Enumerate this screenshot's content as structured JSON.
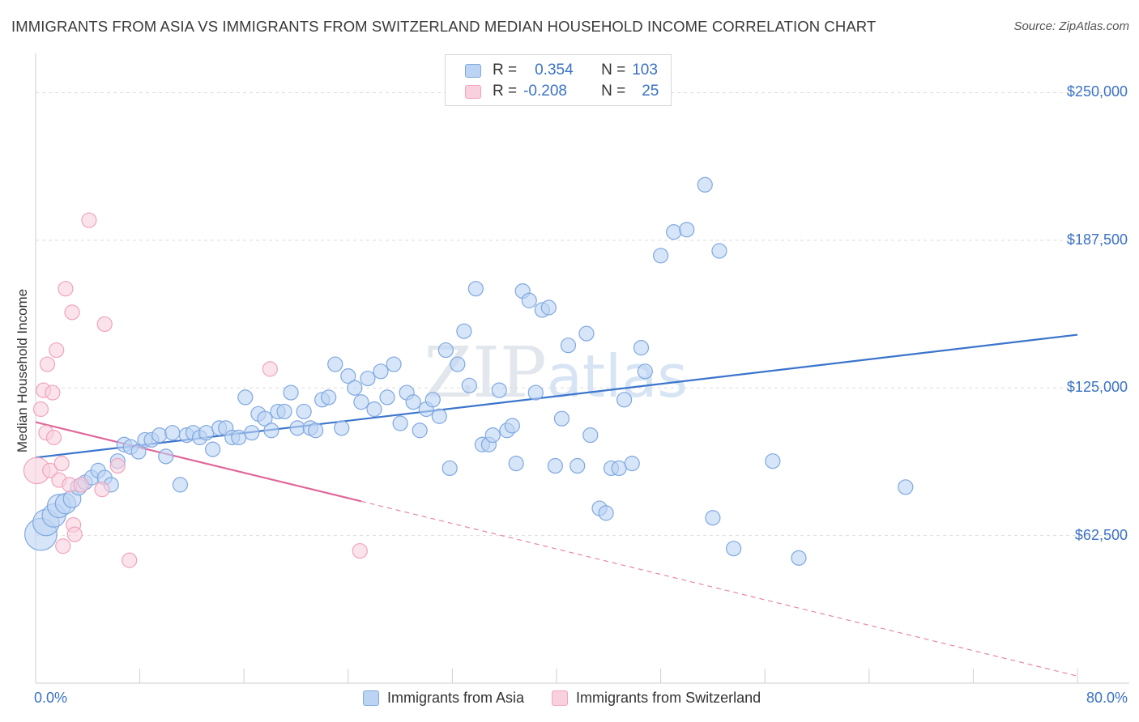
{
  "chart_data": {
    "type": "scatter",
    "title": "IMMIGRANTS FROM ASIA VS IMMIGRANTS FROM SWITZERLAND MEDIAN HOUSEHOLD INCOME CORRELATION CHART",
    "source": "Source: ZipAtlas.com",
    "watermark": "ZIPatlas",
    "xlabel": "",
    "ylabel": "Median Household Income",
    "xlim": [
      0,
      80
    ],
    "ylim": [
      0,
      262500
    ],
    "x_tick_labels": [
      "0.0%",
      "80.0%"
    ],
    "y_ticks": [
      62500,
      125000,
      187500,
      250000
    ],
    "y_tick_labels": [
      "$62,500",
      "$125,000",
      "$187,500",
      "$250,000"
    ],
    "legend": {
      "rows": [
        {
          "r_label": "R =",
          "r_value": "0.354",
          "n_label": "N =",
          "n_value": "103"
        },
        {
          "r_label": "R =",
          "r_value": "-0.208",
          "n_label": "N =",
          "n_value": "25"
        }
      ]
    },
    "series": [
      {
        "name": "Immigrants from Asia",
        "color": "#7fa8e0",
        "fill": "#bcd4f3",
        "line_color": "#3a74cc",
        "trend": {
          "x0": 0,
          "y0": 95500,
          "x1": 80,
          "y1": 147500
        },
        "points": [
          [
            0.4,
            63000,
            2.2
          ],
          [
            0.8,
            68000,
            1.8
          ],
          [
            1.4,
            71000,
            1.6
          ],
          [
            1.8,
            75000,
            1.6
          ],
          [
            2.3,
            76000,
            1.4
          ],
          [
            2.8,
            78000,
            1.2
          ],
          [
            3.3,
            83000,
            1.1
          ],
          [
            3.8,
            85000,
            1.0
          ],
          [
            4.3,
            87000,
            1.0
          ],
          [
            4.8,
            90000,
            1.0
          ],
          [
            5.3,
            87000,
            1.0
          ],
          [
            5.8,
            84000,
            1.0
          ],
          [
            6.3,
            94000,
            1.0
          ],
          [
            6.8,
            101000,
            1.0
          ],
          [
            7.3,
            100000,
            1.0
          ],
          [
            7.9,
            98000,
            1.0
          ],
          [
            8.4,
            103000,
            1.0
          ],
          [
            8.9,
            103000,
            1.0
          ],
          [
            9.5,
            105000,
            1.0
          ],
          [
            10.0,
            96000,
            1.0
          ],
          [
            10.5,
            106000,
            1.0
          ],
          [
            11.1,
            84000,
            1.0
          ],
          [
            11.6,
            105000,
            1.0
          ],
          [
            12.1,
            106000,
            1.0
          ],
          [
            12.6,
            104000,
            1.0
          ],
          [
            13.1,
            106000,
            1.0
          ],
          [
            13.6,
            99000,
            1.0
          ],
          [
            14.1,
            108000,
            1.0
          ],
          [
            14.6,
            108000,
            1.0
          ],
          [
            15.1,
            104000,
            1.0
          ],
          [
            15.6,
            104000,
            1.0
          ],
          [
            16.1,
            121000,
            1.0
          ],
          [
            16.6,
            106000,
            1.0
          ],
          [
            17.1,
            114000,
            1.0
          ],
          [
            17.6,
            112000,
            1.0
          ],
          [
            18.1,
            107000,
            1.0
          ],
          [
            18.6,
            115000,
            1.0
          ],
          [
            19.1,
            115000,
            1.0
          ],
          [
            19.6,
            123000,
            1.0
          ],
          [
            20.1,
            108000,
            1.0
          ],
          [
            20.6,
            115000,
            1.0
          ],
          [
            21.1,
            108000,
            1.0
          ],
          [
            21.5,
            107000,
            1.0
          ],
          [
            22.0,
            120000,
            1.0
          ],
          [
            22.5,
            121000,
            1.0
          ],
          [
            23.0,
            135000,
            1.0
          ],
          [
            23.5,
            108000,
            1.0
          ],
          [
            24.0,
            130000,
            1.0
          ],
          [
            24.5,
            125000,
            1.0
          ],
          [
            25.0,
            119000,
            1.0
          ],
          [
            25.5,
            129000,
            1.0
          ],
          [
            26.0,
            116000,
            1.0
          ],
          [
            26.5,
            132000,
            1.0
          ],
          [
            27.0,
            121000,
            1.0
          ],
          [
            27.5,
            135000,
            1.0
          ],
          [
            28.0,
            110000,
            1.0
          ],
          [
            28.5,
            123000,
            1.0
          ],
          [
            29.0,
            119000,
            1.0
          ],
          [
            29.5,
            107000,
            1.0
          ],
          [
            30.0,
            116000,
            1.0
          ],
          [
            30.5,
            120000,
            1.0
          ],
          [
            31.0,
            113000,
            1.0
          ],
          [
            31.5,
            141000,
            1.0
          ],
          [
            31.8,
            91000,
            1.0
          ],
          [
            32.4,
            135000,
            1.0
          ],
          [
            32.9,
            149000,
            1.0
          ],
          [
            33.3,
            126000,
            1.0
          ],
          [
            33.8,
            167000,
            1.0
          ],
          [
            34.3,
            101000,
            1.0
          ],
          [
            34.8,
            101000,
            1.0
          ],
          [
            35.1,
            105000,
            1.0
          ],
          [
            35.6,
            124000,
            1.0
          ],
          [
            36.2,
            107000,
            1.0
          ],
          [
            36.6,
            109000,
            1.0
          ],
          [
            36.9,
            93000,
            1.0
          ],
          [
            37.4,
            166000,
            1.0
          ],
          [
            37.9,
            162000,
            1.0
          ],
          [
            38.4,
            123000,
            1.0
          ],
          [
            38.9,
            158000,
            1.0
          ],
          [
            39.4,
            159000,
            1.0
          ],
          [
            39.9,
            92000,
            1.0
          ],
          [
            40.4,
            112000,
            1.0
          ],
          [
            40.9,
            143000,
            1.0
          ],
          [
            41.6,
            92000,
            1.0
          ],
          [
            42.3,
            148000,
            1.0
          ],
          [
            42.6,
            105000,
            1.0
          ],
          [
            43.3,
            74000,
            1.0
          ],
          [
            43.8,
            72000,
            1.0
          ],
          [
            44.2,
            91000,
            1.0
          ],
          [
            44.8,
            91000,
            1.0
          ],
          [
            45.2,
            120000,
            1.0
          ],
          [
            45.8,
            93000,
            1.0
          ],
          [
            46.5,
            142000,
            1.0
          ],
          [
            46.8,
            132000,
            1.0
          ],
          [
            48.0,
            181000,
            1.0
          ],
          [
            49.0,
            191000,
            1.0
          ],
          [
            50.0,
            192000,
            1.0
          ],
          [
            51.4,
            211000,
            1.0
          ],
          [
            52.0,
            70000,
            1.0
          ],
          [
            52.5,
            183000,
            1.0
          ],
          [
            53.6,
            57000,
            1.0
          ],
          [
            56.6,
            94000,
            1.0
          ],
          [
            58.6,
            53000,
            1.0
          ],
          [
            66.8,
            83000,
            1.0
          ]
        ]
      },
      {
        "name": "Immigrants from Switzerland",
        "color": "#f0a4bd",
        "fill": "#f9d0dd",
        "line_color": "#e0679a",
        "trend": {
          "x0": 0,
          "y0": 110500,
          "x1": 25,
          "y1": 77000
        },
        "trend_dashed": {
          "x0": 25,
          "y0": 77000,
          "x1": 80,
          "y1": 3000
        },
        "points": [
          [
            0.1,
            90000,
            1.8
          ],
          [
            0.4,
            116000,
            1.0
          ],
          [
            0.6,
            124000,
            1.0
          ],
          [
            0.8,
            106000,
            1.0
          ],
          [
            0.9,
            135000,
            1.0
          ],
          [
            1.1,
            90000,
            1.0
          ],
          [
            1.3,
            123000,
            1.0
          ],
          [
            1.4,
            104000,
            1.0
          ],
          [
            1.6,
            141000,
            1.0
          ],
          [
            1.8,
            86000,
            1.0
          ],
          [
            2.0,
            93000,
            1.0
          ],
          [
            2.1,
            58000,
            1.0
          ],
          [
            2.3,
            167000,
            1.0
          ],
          [
            2.6,
            84000,
            1.0
          ],
          [
            2.8,
            157000,
            1.0
          ],
          [
            2.9,
            67000,
            1.0
          ],
          [
            3.0,
            63000,
            1.0
          ],
          [
            3.5,
            84000,
            1.0
          ],
          [
            4.1,
            196000,
            1.0
          ],
          [
            5.1,
            82000,
            1.0
          ],
          [
            5.3,
            152000,
            1.0
          ],
          [
            6.3,
            92000,
            1.0
          ],
          [
            7.2,
            52000,
            1.0
          ],
          [
            18.0,
            133000,
            1.0
          ],
          [
            24.9,
            56000,
            1.0
          ]
        ]
      }
    ]
  }
}
